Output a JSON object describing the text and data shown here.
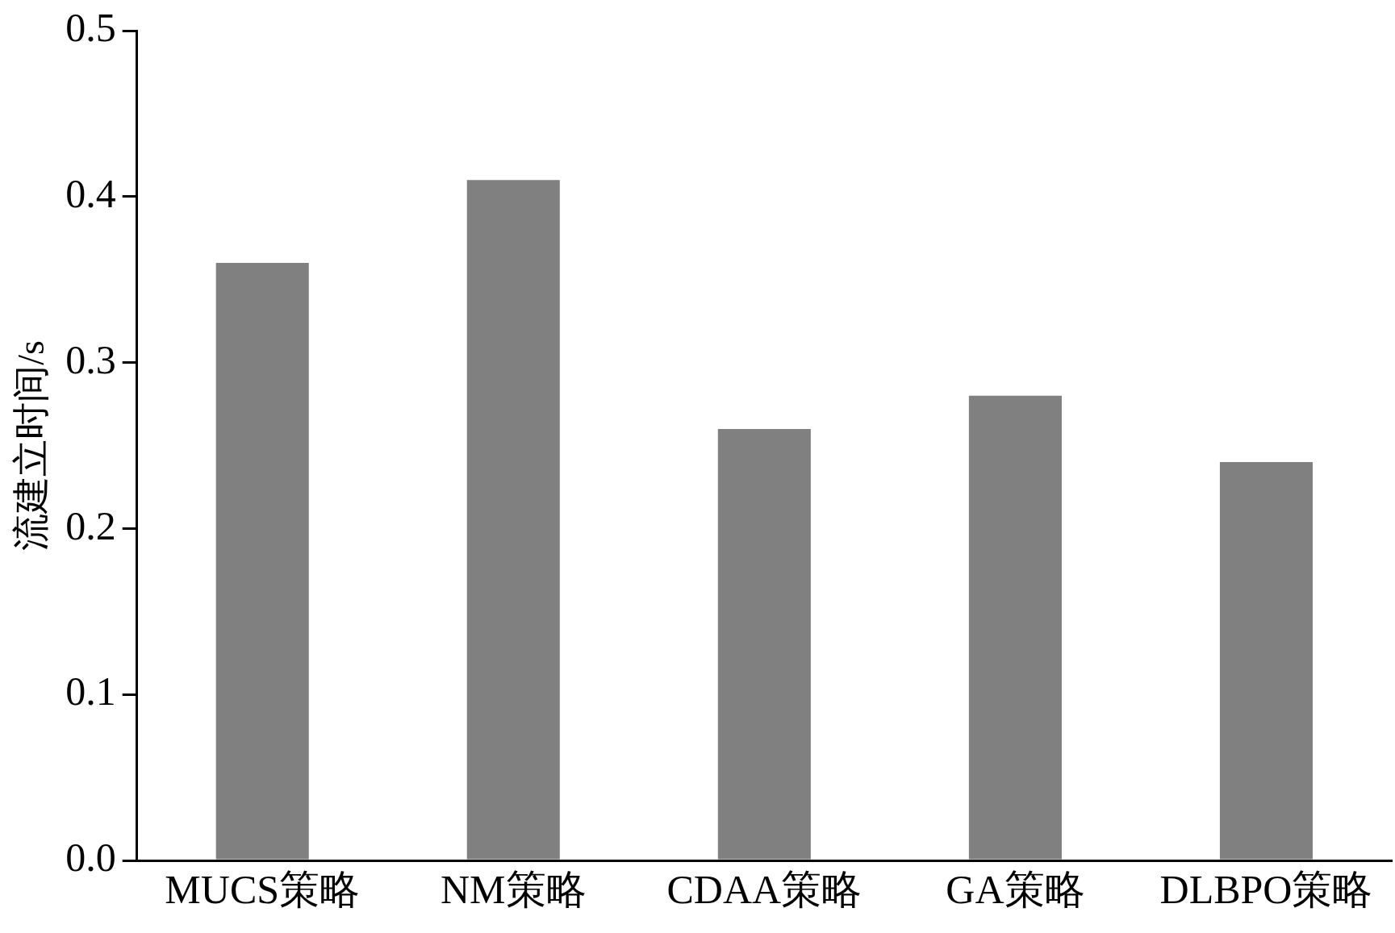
{
  "chart_data": {
    "type": "bar",
    "ylabel": "流建立时间/s",
    "categories": [
      "MUCS策略",
      "NM策略",
      "CDAA策略",
      "GA策略",
      "DLBPO策略"
    ],
    "values": [
      0.36,
      0.41,
      0.26,
      0.28,
      0.24
    ],
    "color": "#808080",
    "ylim": [
      0,
      0.5
    ],
    "yticks": [
      {
        "value": 0,
        "label": "0.0"
      },
      {
        "value": 0.1,
        "label": "0.1"
      },
      {
        "value": 0.2,
        "label": "0.2"
      },
      {
        "value": 0.3,
        "label": "0.3"
      },
      {
        "value": 0.4,
        "label": "0.4"
      },
      {
        "value": 0.5,
        "label": "0.5"
      }
    ],
    "grid": false,
    "legend": false
  }
}
